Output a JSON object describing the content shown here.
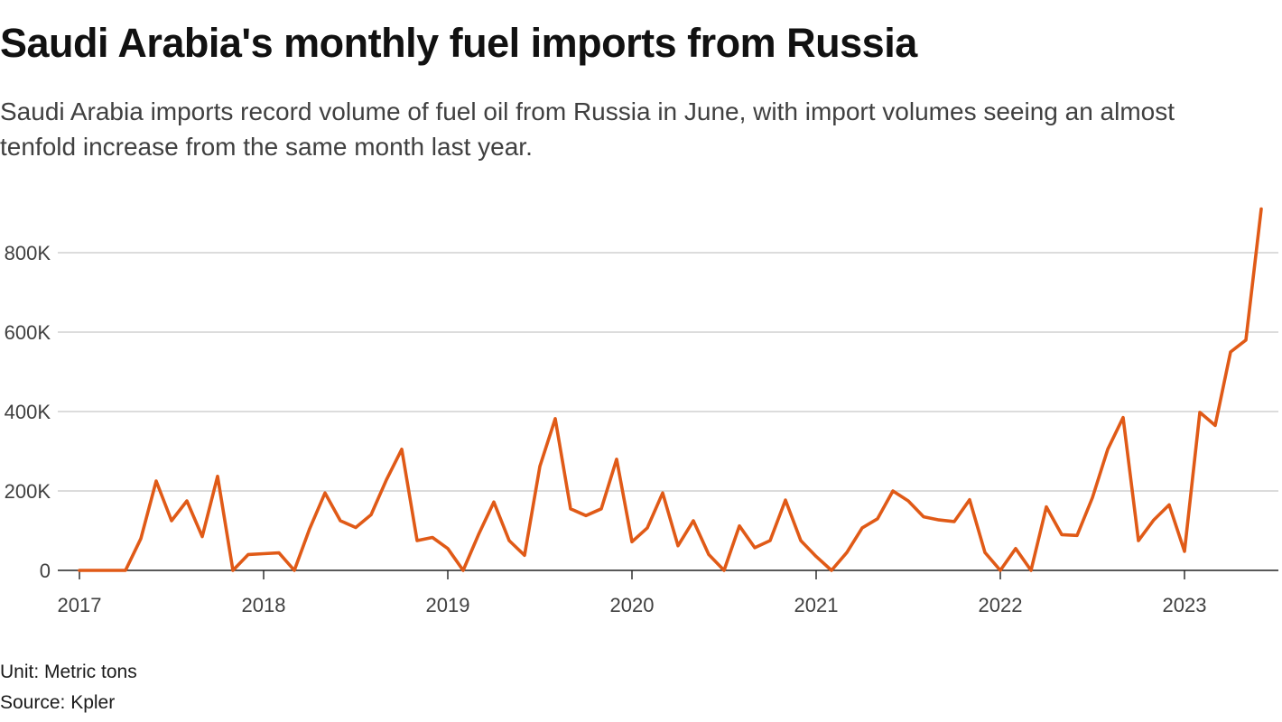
{
  "chart_data": {
    "type": "line",
    "title": "Saudi Arabia's monthly fuel imports from Russia",
    "subtitle": "Saudi Arabia imports record volume of fuel oil from Russia in June, with import volumes seeing an almost tenfold increase from the same month last year.",
    "xlabel": "",
    "ylabel": "",
    "x_start": "2017-01",
    "x_end": "2023-06",
    "x_ticks": [
      "2017",
      "2018",
      "2019",
      "2020",
      "2021",
      "2022",
      "2023"
    ],
    "y_ticks": [
      "0",
      "200K",
      "400K",
      "600K",
      "800K"
    ],
    "y_tick_values": [
      0,
      200000,
      400000,
      600000,
      800000
    ],
    "ylim": [
      0,
      920000
    ],
    "grid": true,
    "line_color": "#e05a17",
    "series": [
      {
        "name": "Fuel imports",
        "x": [
          "2017-01",
          "2017-02",
          "2017-03",
          "2017-04",
          "2017-05",
          "2017-06",
          "2017-07",
          "2017-08",
          "2017-09",
          "2017-10",
          "2017-11",
          "2017-12",
          "2018-01",
          "2018-02",
          "2018-03",
          "2018-04",
          "2018-05",
          "2018-06",
          "2018-07",
          "2018-08",
          "2018-09",
          "2018-10",
          "2018-11",
          "2018-12",
          "2019-01",
          "2019-02",
          "2019-03",
          "2019-04",
          "2019-05",
          "2019-06",
          "2019-07",
          "2019-08",
          "2019-09",
          "2019-10",
          "2019-11",
          "2019-12",
          "2020-01",
          "2020-02",
          "2020-03",
          "2020-04",
          "2020-05",
          "2020-06",
          "2020-07",
          "2020-08",
          "2020-09",
          "2020-10",
          "2020-11",
          "2020-12",
          "2021-01",
          "2021-02",
          "2021-03",
          "2021-04",
          "2021-05",
          "2021-06",
          "2021-07",
          "2021-08",
          "2021-09",
          "2021-10",
          "2021-11",
          "2021-12",
          "2022-01",
          "2022-02",
          "2022-03",
          "2022-04",
          "2022-05",
          "2022-06",
          "2022-07",
          "2022-08",
          "2022-09",
          "2022-10",
          "2022-11",
          "2022-12",
          "2023-01",
          "2023-02",
          "2023-03",
          "2023-04",
          "2023-05",
          "2023-06"
        ],
        "values": [
          0,
          0,
          0,
          0,
          80000,
          225000,
          125000,
          175000,
          85000,
          237000,
          0,
          40000,
          42000,
          44000,
          0,
          105000,
          195000,
          125000,
          108000,
          140000,
          228000,
          305000,
          75000,
          83000,
          55000,
          0,
          90000,
          172000,
          75000,
          38000,
          262000,
          382000,
          155000,
          138000,
          155000,
          280000,
          72000,
          107000,
          195000,
          62000,
          125000,
          40000,
          0,
          112000,
          57000,
          75000,
          177000,
          75000,
          35000,
          0,
          45000,
          107000,
          130000,
          200000,
          175000,
          135000,
          127000,
          123000,
          178000,
          45000,
          0,
          55000,
          0,
          160000,
          90000,
          88000,
          183000,
          305000,
          385000,
          75000,
          127000,
          165000,
          48000,
          398000,
          365000,
          550000,
          580000,
          910000
        ]
      }
    ]
  },
  "footer": {
    "unit": "Unit: Metric tons",
    "source": "Source: Kpler"
  }
}
